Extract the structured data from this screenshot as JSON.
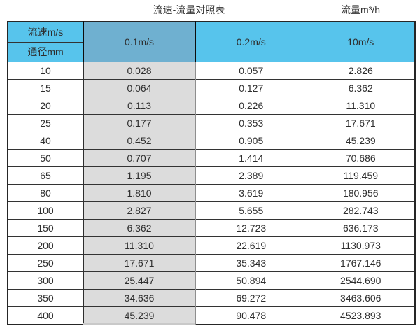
{
  "titles": {
    "left": "流速-流量对照表",
    "right": "流量m³/h"
  },
  "table": {
    "corner": {
      "top": "流速m/s",
      "bottom": "通径mm"
    },
    "velocity_columns": [
      "0.1m/s",
      "0.2m/s",
      "10m/s"
    ],
    "rows": [
      {
        "diameter": "10",
        "values": [
          "0.028",
          "0.057",
          "2.826"
        ]
      },
      {
        "diameter": "15",
        "values": [
          "0.064",
          "0.127",
          "6.362"
        ]
      },
      {
        "diameter": "20",
        "values": [
          "0.113",
          "0.226",
          "11.310"
        ]
      },
      {
        "diameter": "25",
        "values": [
          "0.177",
          "0.353",
          "17.671"
        ]
      },
      {
        "diameter": "40",
        "values": [
          "0.452",
          "0.905",
          "45.239"
        ]
      },
      {
        "diameter": "50",
        "values": [
          "0.707",
          "1.414",
          "70.686"
        ]
      },
      {
        "diameter": "65",
        "values": [
          "1.195",
          "2.389",
          "119.459"
        ]
      },
      {
        "diameter": "80",
        "values": [
          "1.810",
          "3.619",
          "180.956"
        ]
      },
      {
        "diameter": "100",
        "values": [
          "2.827",
          "5.655",
          "282.743"
        ]
      },
      {
        "diameter": "150",
        "values": [
          "6.362",
          "12.723",
          "636.173"
        ]
      },
      {
        "diameter": "200",
        "values": [
          "11.310",
          "22.619",
          "1130.973"
        ]
      },
      {
        "diameter": "250",
        "values": [
          "17.671",
          "35.343",
          "1767.146"
        ]
      },
      {
        "diameter": "300",
        "values": [
          "25.447",
          "50.894",
          "2544.690"
        ]
      },
      {
        "diameter": "350",
        "values": [
          "34.636",
          "69.272",
          "3463.606"
        ]
      },
      {
        "diameter": "400",
        "values": [
          "45.239",
          "90.478",
          "4523.893"
        ]
      }
    ]
  },
  "colors": {
    "header_blue": "#57c4ec",
    "highlight_header_blue": "#6fb0d0",
    "highlight_column_gray": "#dcdcdc",
    "border_dark": "#262626",
    "text": "#333333"
  },
  "chart_data": {
    "type": "table",
    "title": "流速-流量对照表",
    "unit_label": "流量m³/h",
    "columns": [
      "通径mm",
      "0.1m/s",
      "0.2m/s",
      "10m/s"
    ],
    "rows": [
      [
        10,
        0.028,
        0.057,
        2.826
      ],
      [
        15,
        0.064,
        0.127,
        6.362
      ],
      [
        20,
        0.113,
        0.226,
        11.31
      ],
      [
        25,
        0.177,
        0.353,
        17.671
      ],
      [
        40,
        0.452,
        0.905,
        45.239
      ],
      [
        50,
        0.707,
        1.414,
        70.686
      ],
      [
        65,
        1.195,
        2.389,
        119.459
      ],
      [
        80,
        1.81,
        3.619,
        180.956
      ],
      [
        100,
        2.827,
        5.655,
        282.743
      ],
      [
        150,
        6.362,
        12.723,
        636.173
      ],
      [
        200,
        11.31,
        22.619,
        1130.973
      ],
      [
        250,
        17.671,
        35.343,
        1767.146
      ],
      [
        300,
        25.447,
        50.894,
        2544.69
      ],
      [
        350,
        34.636,
        69.272,
        3463.606
      ],
      [
        400,
        45.239,
        90.478,
        4523.893
      ]
    ]
  }
}
